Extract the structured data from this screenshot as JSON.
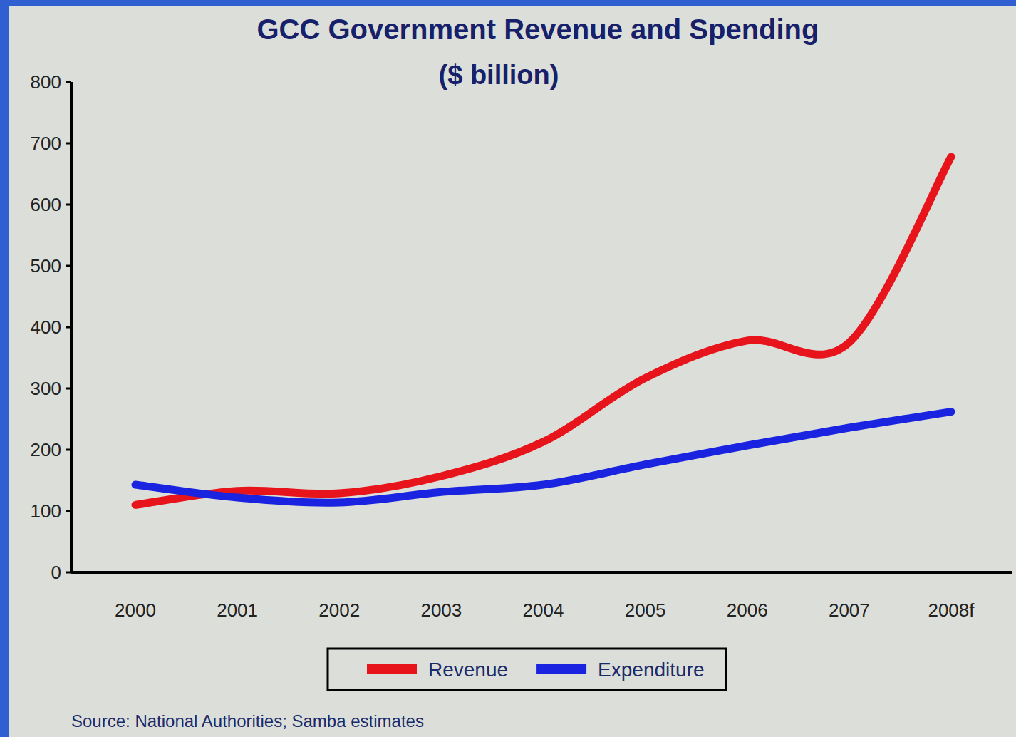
{
  "chart_data": {
    "type": "line",
    "title": "GCC Government Revenue and Spending",
    "subtitle": "($ billion)",
    "categories": [
      "2000",
      "2001",
      "2002",
      "2003",
      "2004",
      "2005",
      "2006",
      "2007",
      "2008f"
    ],
    "series": [
      {
        "name": "Revenue",
        "color": "#e8141c",
        "values": [
          110,
          133,
          129,
          157,
          213,
          317,
          378,
          375,
          678
        ]
      },
      {
        "name": "Expenditure",
        "color": "#1a24e0",
        "values": [
          143,
          122,
          114,
          131,
          143,
          176,
          207,
          236,
          262
        ]
      }
    ],
    "ylim": [
      0,
      800
    ],
    "yticks": [
      0,
      100,
      200,
      300,
      400,
      500,
      600,
      700,
      800
    ],
    "grid": false,
    "legend": "bottom",
    "annotations": [
      "Source: National Authorities; Samba estimates"
    ]
  }
}
